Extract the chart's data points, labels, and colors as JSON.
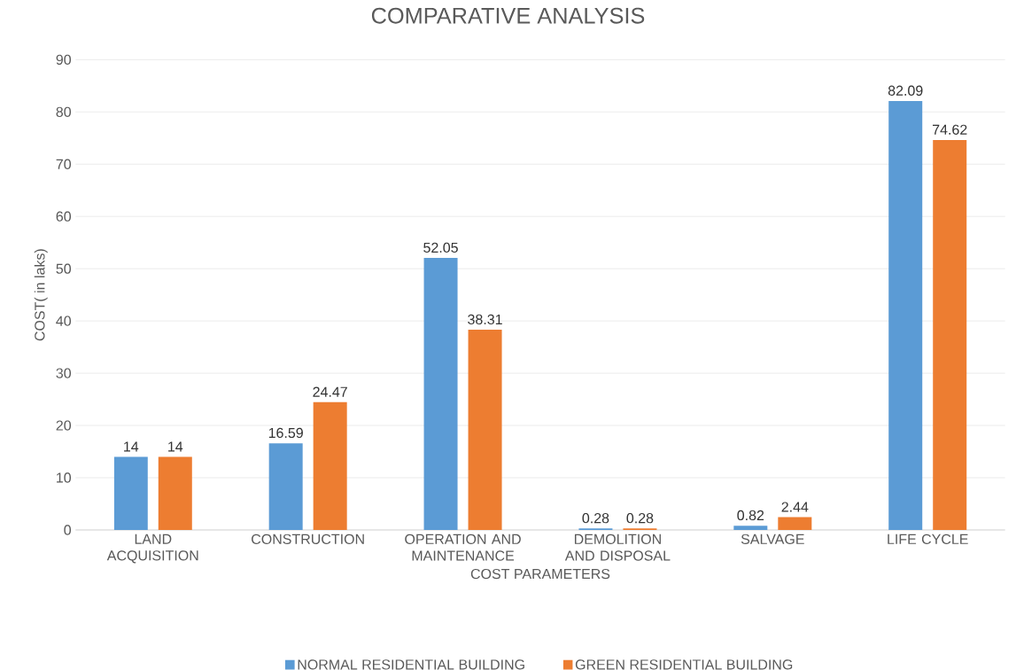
{
  "chart_data": {
    "type": "bar",
    "title": "COMPARATIVE ANALYSIS",
    "xlabel": "COST PARAMETERS",
    "ylabel": "COST( in laks)",
    "categories": [
      "LAND ACQUISITION",
      "CONSTRUCTION",
      "OPERATION AND MAINTENANCE",
      "DEMOLITION AND DISPOSAL",
      "SALVAGE",
      "LIFE CYCLE"
    ],
    "series": [
      {
        "name": "NORMAL RESIDENTIAL BUILDING",
        "color": "#5b9bd5",
        "values": [
          14,
          16.59,
          52.05,
          0.28,
          0.82,
          82.09
        ]
      },
      {
        "name": "GREEN RESIDENTIAL BUILDING",
        "color": "#ed7d31",
        "values": [
          14,
          24.47,
          38.31,
          0.28,
          2.44,
          74.62
        ]
      }
    ],
    "ylim": [
      0,
      90
    ],
    "yticks": [
      0,
      10,
      20,
      30,
      40,
      50,
      60,
      70,
      80,
      90
    ],
    "grid": "y",
    "legend": "bottom",
    "data_labels": true
  }
}
